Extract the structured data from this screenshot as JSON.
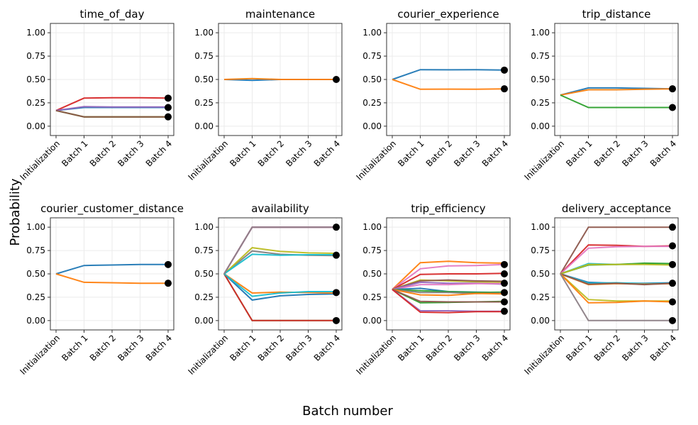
{
  "figure": {
    "xlabel": "Batch number",
    "ylabel": "Probability"
  },
  "chart_data": [
    {
      "type": "line",
      "title": "time_of_day",
      "categories": [
        "Initialization",
        "Batch 1",
        "Batch 2",
        "Batch 3",
        "Batch 4"
      ],
      "ylim": [
        -0.1,
        1.1
      ],
      "yticks": [
        "0.00",
        "0.25",
        "0.50",
        "0.75",
        "1.00"
      ],
      "grid": true,
      "series": [
        {
          "name": "s0",
          "color": "#1f77b4",
          "values": [
            0.167,
            0.2,
            0.2,
            0.2,
            0.2
          ]
        },
        {
          "name": "s1",
          "color": "#ff7f0e",
          "values": [
            0.167,
            0.1,
            0.1,
            0.1,
            0.1
          ]
        },
        {
          "name": "s2",
          "color": "#2ca02c",
          "values": [
            0.167,
            0.1,
            0.1,
            0.1,
            0.1
          ]
        },
        {
          "name": "s3",
          "color": "#d62728",
          "values": [
            0.167,
            0.3,
            0.305,
            0.305,
            0.3
          ]
        },
        {
          "name": "s4",
          "color": "#9467bd",
          "values": [
            0.167,
            0.21,
            0.205,
            0.205,
            0.205
          ]
        },
        {
          "name": "s5",
          "color": "#8c564b",
          "values": [
            0.167,
            0.1,
            0.1,
            0.1,
            0.1
          ]
        }
      ],
      "final_markers": [
        0.3,
        0.2,
        0.1
      ]
    },
    {
      "type": "line",
      "title": "maintenance",
      "categories": [
        "Initialization",
        "Batch 1",
        "Batch 2",
        "Batch 3",
        "Batch 4"
      ],
      "ylim": [
        -0.1,
        1.1
      ],
      "yticks": [
        "0.00",
        "0.25",
        "0.50",
        "0.75",
        "1.00"
      ],
      "grid": true,
      "series": [
        {
          "name": "s0",
          "color": "#1f77b4",
          "values": [
            0.5,
            0.49,
            0.5,
            0.5,
            0.5
          ]
        },
        {
          "name": "s1",
          "color": "#ff7f0e",
          "values": [
            0.5,
            0.51,
            0.5,
            0.5,
            0.5
          ]
        }
      ],
      "final_markers": [
        0.5
      ]
    },
    {
      "type": "line",
      "title": "courier_experience",
      "categories": [
        "Initialization",
        "Batch 1",
        "Batch 2",
        "Batch 3",
        "Batch 4"
      ],
      "ylim": [
        -0.1,
        1.1
      ],
      "yticks": [
        "0.00",
        "0.25",
        "0.50",
        "0.75",
        "1.00"
      ],
      "grid": true,
      "series": [
        {
          "name": "s0",
          "color": "#1f77b4",
          "values": [
            0.5,
            0.605,
            0.603,
            0.605,
            0.6
          ]
        },
        {
          "name": "s1",
          "color": "#ff7f0e",
          "values": [
            0.5,
            0.395,
            0.397,
            0.395,
            0.4
          ]
        }
      ],
      "final_markers": [
        0.6,
        0.4
      ]
    },
    {
      "type": "line",
      "title": "trip_distance",
      "categories": [
        "Initialization",
        "Batch 1",
        "Batch 2",
        "Batch 3",
        "Batch 4"
      ],
      "ylim": [
        -0.1,
        1.1
      ],
      "yticks": [
        "0.00",
        "0.25",
        "0.50",
        "0.75",
        "1.00"
      ],
      "grid": true,
      "series": [
        {
          "name": "s0",
          "color": "#1f77b4",
          "values": [
            0.333,
            0.41,
            0.41,
            0.405,
            0.4
          ]
        },
        {
          "name": "s1",
          "color": "#ff7f0e",
          "values": [
            0.333,
            0.39,
            0.39,
            0.395,
            0.4
          ]
        },
        {
          "name": "s2",
          "color": "#2ca02c",
          "values": [
            0.333,
            0.2,
            0.2,
            0.2,
            0.2
          ]
        }
      ],
      "final_markers": [
        0.4,
        0.2
      ]
    },
    {
      "type": "line",
      "title": "courier_customer_distance",
      "categories": [
        "Initialization",
        "Batch 1",
        "Batch 2",
        "Batch 3",
        "Batch 4"
      ],
      "ylim": [
        -0.1,
        1.1
      ],
      "yticks": [
        "0.00",
        "0.25",
        "0.50",
        "0.75",
        "1.00"
      ],
      "grid": true,
      "series": [
        {
          "name": "s0",
          "color": "#1f77b4",
          "values": [
            0.5,
            0.59,
            0.595,
            0.6,
            0.6
          ]
        },
        {
          "name": "s1",
          "color": "#ff7f0e",
          "values": [
            0.5,
            0.41,
            0.405,
            0.4,
            0.4
          ]
        }
      ],
      "final_markers": [
        0.6,
        0.4
      ]
    },
    {
      "type": "line",
      "title": "availability",
      "categories": [
        "Initialization",
        "Batch 1",
        "Batch 2",
        "Batch 3",
        "Batch 4"
      ],
      "ylim": [
        -0.1,
        1.1
      ],
      "yticks": [
        "0.00",
        "0.25",
        "0.50",
        "0.75",
        "1.00"
      ],
      "grid": true,
      "series": [
        {
          "name": "s0",
          "color": "#1f77b4",
          "values": [
            0.5,
            0.22,
            0.265,
            0.28,
            0.285
          ]
        },
        {
          "name": "s1",
          "color": "#ff7f0e",
          "values": [
            0.5,
            0.295,
            0.305,
            0.3,
            0.295
          ]
        },
        {
          "name": "s2",
          "color": "#2ca02c",
          "values": [
            0.5,
            0.0,
            0.0,
            0.0,
            0.0
          ]
        },
        {
          "name": "s3",
          "color": "#d62728",
          "values": [
            0.5,
            0.0,
            0.0,
            0.0,
            0.0
          ]
        },
        {
          "name": "s4",
          "color": "#9467bd",
          "values": [
            0.5,
            1.0,
            1.0,
            1.0,
            1.0
          ]
        },
        {
          "name": "s5",
          "color": "#8c564b",
          "values": [
            0.5,
            1.0,
            1.0,
            1.0,
            1.0
          ]
        },
        {
          "name": "s6",
          "color": "#e377c2",
          "values": [
            0.5,
            1.0,
            1.0,
            1.0,
            1.0
          ]
        },
        {
          "name": "s7",
          "color": "#7f7f7f",
          "values": [
            0.5,
            0.745,
            0.71,
            0.7,
            0.695
          ]
        },
        {
          "name": "s8",
          "color": "#bcbd22",
          "values": [
            0.5,
            0.78,
            0.74,
            0.725,
            0.72
          ]
        },
        {
          "name": "s9",
          "color": "#17becf",
          "values": [
            0.5,
            0.71,
            0.7,
            0.705,
            0.705
          ]
        },
        {
          "name": "s10",
          "color": "#17becf",
          "values": [
            0.5,
            0.26,
            0.295,
            0.31,
            0.31
          ]
        },
        {
          "name": "s11",
          "color": "#8c7f86",
          "values": [
            0.5,
            1.0,
            1.0,
            1.0,
            1.0
          ]
        }
      ],
      "final_markers": [
        1.0,
        0.7,
        0.3,
        0.0
      ]
    },
    {
      "type": "line",
      "title": "trip_efficiency",
      "categories": [
        "Initialization",
        "Batch 1",
        "Batch 2",
        "Batch 3",
        "Batch 4"
      ],
      "ylim": [
        -0.1,
        1.1
      ],
      "yticks": [
        "0.00",
        "0.25",
        "0.50",
        "0.75",
        "1.00"
      ],
      "grid": true,
      "series": [
        {
          "name": "s0",
          "color": "#ff7f0e",
          "values": [
            0.333,
            0.62,
            0.635,
            0.62,
            0.615
          ]
        },
        {
          "name": "s1",
          "color": "#e377c2",
          "values": [
            0.333,
            0.555,
            0.585,
            0.59,
            0.6
          ]
        },
        {
          "name": "s2",
          "color": "#d62728",
          "values": [
            0.333,
            0.495,
            0.5,
            0.5,
            0.505
          ]
        },
        {
          "name": "s3",
          "color": "#bcbd22",
          "values": [
            0.333,
            0.435,
            0.425,
            0.415,
            0.41
          ]
        },
        {
          "name": "s4",
          "color": "#8c564b",
          "values": [
            0.333,
            0.425,
            0.435,
            0.425,
            0.42
          ]
        },
        {
          "name": "s5",
          "color": "#9467bd",
          "values": [
            0.333,
            0.41,
            0.4,
            0.4,
            0.39
          ]
        },
        {
          "name": "s6",
          "color": "#e377c2",
          "values": [
            0.333,
            0.385,
            0.385,
            0.395,
            0.395
          ]
        },
        {
          "name": "s7",
          "color": "#1f77b4",
          "values": [
            0.333,
            0.345,
            0.31,
            0.305,
            0.3
          ]
        },
        {
          "name": "s8",
          "color": "#2ca02c",
          "values": [
            0.333,
            0.32,
            0.31,
            0.3,
            0.305
          ]
        },
        {
          "name": "s9",
          "color": "#7f7f7f",
          "values": [
            0.333,
            0.3,
            0.3,
            0.29,
            0.295
          ]
        },
        {
          "name": "s10",
          "color": "#ff7f0e",
          "values": [
            0.333,
            0.275,
            0.27,
            0.29,
            0.285
          ]
        },
        {
          "name": "s11",
          "color": "#2ca02c",
          "values": [
            0.333,
            0.19,
            0.195,
            0.2,
            0.205
          ]
        },
        {
          "name": "s12",
          "color": "#8c564b",
          "values": [
            0.333,
            0.205,
            0.2,
            0.2,
            0.2
          ]
        },
        {
          "name": "s13",
          "color": "#9467bd",
          "values": [
            0.333,
            0.105,
            0.105,
            0.1,
            0.1
          ]
        },
        {
          "name": "s14",
          "color": "#d62728",
          "values": [
            0.333,
            0.09,
            0.085,
            0.095,
            0.095
          ]
        }
      ],
      "final_markers": [
        0.6,
        0.5,
        0.4,
        0.3,
        0.2,
        0.1
      ]
    },
    {
      "type": "line",
      "title": "delivery_acceptance",
      "categories": [
        "Initialization",
        "Batch 1",
        "Batch 2",
        "Batch 3",
        "Batch 4"
      ],
      "ylim": [
        -0.1,
        1.1
      ],
      "yticks": [
        "0.00",
        "0.25",
        "0.50",
        "0.75",
        "1.00"
      ],
      "grid": true,
      "series": [
        {
          "name": "s0",
          "color": "#8c564b",
          "values": [
            0.5,
            1.0,
            1.0,
            1.0,
            1.0
          ]
        },
        {
          "name": "s1",
          "color": "#d62728",
          "values": [
            0.5,
            0.81,
            0.805,
            0.795,
            0.8
          ]
        },
        {
          "name": "s2",
          "color": "#e377c2",
          "values": [
            0.5,
            0.775,
            0.79,
            0.795,
            0.795
          ]
        },
        {
          "name": "s3",
          "color": "#17becf",
          "values": [
            0.5,
            0.61,
            0.6,
            0.605,
            0.605
          ]
        },
        {
          "name": "s4",
          "color": "#2ca02c",
          "values": [
            0.5,
            0.595,
            0.6,
            0.615,
            0.61
          ]
        },
        {
          "name": "s5",
          "color": "#bcbd22",
          "values": [
            0.5,
            0.6,
            0.6,
            0.6,
            0.595
          ]
        },
        {
          "name": "s6",
          "color": "#1f77b4",
          "values": [
            0.5,
            0.41,
            0.4,
            0.4,
            0.405
          ]
        },
        {
          "name": "s7",
          "color": "#17becf",
          "values": [
            0.5,
            0.4,
            0.405,
            0.395,
            0.4
          ]
        },
        {
          "name": "s8",
          "color": "#ff7f0e",
          "values": [
            0.5,
            0.385,
            0.395,
            0.39,
            0.395
          ]
        },
        {
          "name": "s9",
          "color": "#8c564b",
          "values": [
            0.5,
            0.39,
            0.4,
            0.385,
            0.4
          ]
        },
        {
          "name": "s10",
          "color": "#bcbd22",
          "values": [
            0.5,
            0.225,
            0.21,
            0.21,
            0.21
          ]
        },
        {
          "name": "s11",
          "color": "#ff7f0e",
          "values": [
            0.5,
            0.19,
            0.195,
            0.21,
            0.2
          ]
        },
        {
          "name": "s12",
          "color": "#8c7f86",
          "values": [
            0.5,
            0.0,
            0.0,
            0.0,
            0.0
          ]
        }
      ],
      "final_markers": [
        1.0,
        0.8,
        0.6,
        0.4,
        0.2,
        0.0
      ]
    }
  ]
}
